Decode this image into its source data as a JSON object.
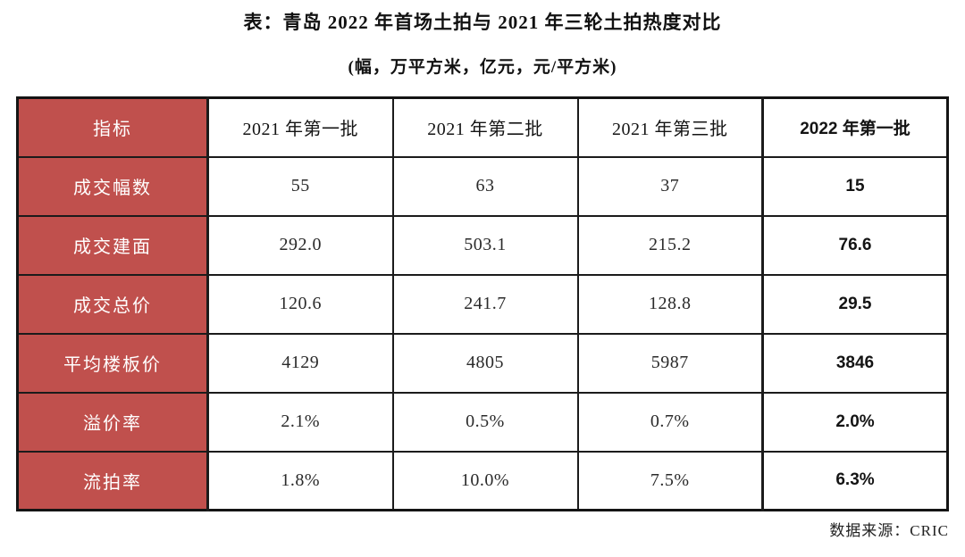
{
  "title": "表：青岛 2022 年首场土拍与 2021 年三轮土拍热度对比",
  "subtitle": "(幅，万平方米，亿元，元/平方米)",
  "source_note": "数据来源：CRIC",
  "colors": {
    "header_red": "#C0504D",
    "border_black": "#1b1b1b",
    "background": "#ffffff"
  },
  "table": {
    "corner_label": "指标",
    "columns": [
      "2021 年第一批",
      "2021 年第二批",
      "2021 年第三批",
      "2022 年第一批"
    ],
    "rows": [
      {
        "label": "成交幅数",
        "values": [
          "55",
          "63",
          "37",
          "15"
        ]
      },
      {
        "label": "成交建面",
        "values": [
          "292.0",
          "503.1",
          "215.2",
          "76.6"
        ]
      },
      {
        "label": "成交总价",
        "values": [
          "120.6",
          "241.7",
          "128.8",
          "29.5"
        ]
      },
      {
        "label": "平均楼板价",
        "values": [
          "4129",
          "4805",
          "5987",
          "3846"
        ]
      },
      {
        "label": "溢价率",
        "values": [
          "2.1%",
          "0.5%",
          "0.7%",
          "2.0%"
        ]
      },
      {
        "label": "流拍率",
        "values": [
          "1.8%",
          "10.0%",
          "7.5%",
          "6.3%"
        ]
      }
    ]
  },
  "chart_data": {
    "type": "table",
    "title": "表：青岛 2022 年首场土拍与 2021 年三轮土拍热度对比",
    "subtitle_units": "(幅，万平方米，亿元，元/平方米)",
    "source": "数据来源：CRIC",
    "categories": [
      "2021 年第一批",
      "2021 年第二批",
      "2021 年第三批",
      "2022 年第一批"
    ],
    "series": [
      {
        "name": "成交幅数",
        "unit": "幅",
        "values": [
          55,
          63,
          37,
          15
        ]
      },
      {
        "name": "成交建面",
        "unit": "万平方米",
        "values": [
          292.0,
          503.1,
          215.2,
          76.6
        ]
      },
      {
        "name": "成交总价",
        "unit": "亿元",
        "values": [
          120.6,
          241.7,
          128.8,
          29.5
        ]
      },
      {
        "name": "平均楼板价",
        "unit": "元/平方米",
        "values": [
          4129,
          4805,
          5987,
          3846
        ]
      },
      {
        "name": "溢价率",
        "unit": "%",
        "values": [
          2.1,
          0.5,
          0.7,
          2.0
        ]
      },
      {
        "name": "流拍率",
        "unit": "%",
        "values": [
          1.8,
          10.0,
          7.5,
          6.3
        ]
      }
    ],
    "layout": {
      "highlight_column": "2022 年第一批",
      "highlight_style": "bold",
      "label_column_style": "red-background-white-text"
    }
  }
}
